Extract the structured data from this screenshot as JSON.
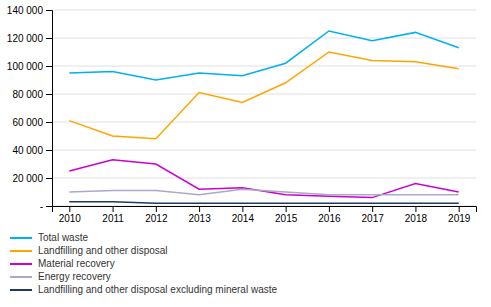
{
  "chart_data": {
    "type": "line",
    "categories": [
      "2010",
      "2011",
      "2012",
      "2013",
      "2014",
      "2015",
      "2016",
      "2017",
      "2018",
      "2019"
    ],
    "series": [
      {
        "name": "Total waste",
        "color": "#00B0F0",
        "values": [
          95000,
          96000,
          90000,
          95000,
          93000,
          102000,
          125000,
          118000,
          124000,
          113000
        ]
      },
      {
        "name": "Landfilling and other disposal",
        "color": "#FFA500",
        "values": [
          61000,
          50000,
          48000,
          81000,
          74000,
          88000,
          110000,
          104000,
          103000,
          98000
        ]
      },
      {
        "name": "Material recovery",
        "color": "#CC00CC",
        "values": [
          25000,
          33000,
          30000,
          12000,
          13000,
          8000,
          7000,
          6000,
          16000,
          10000
        ]
      },
      {
        "name": "Energy recovery",
        "color": "#A9A9C8",
        "values": [
          10000,
          11000,
          11000,
          8000,
          12000,
          10000,
          8000,
          8000,
          8000,
          8000
        ]
      },
      {
        "name": "Landfilling and other disposal excluding mineral waste",
        "color": "#1F3864",
        "values": [
          3000,
          3000,
          2000,
          2000,
          2000,
          2000,
          2000,
          2000,
          2000,
          2000
        ]
      }
    ],
    "ylim": [
      0,
      140000
    ],
    "yticks": [
      {
        "value": 0,
        "label": "-"
      },
      {
        "value": 20000,
        "label": "20 000"
      },
      {
        "value": 40000,
        "label": "40 000"
      },
      {
        "value": 60000,
        "label": "60 000"
      },
      {
        "value": 80000,
        "label": "80 000"
      },
      {
        "value": 100000,
        "label": "100 000"
      },
      {
        "value": 120000,
        "label": "120 000"
      },
      {
        "value": 140000,
        "label": "140 000"
      }
    ],
    "grid": true,
    "legend": "bottom"
  }
}
